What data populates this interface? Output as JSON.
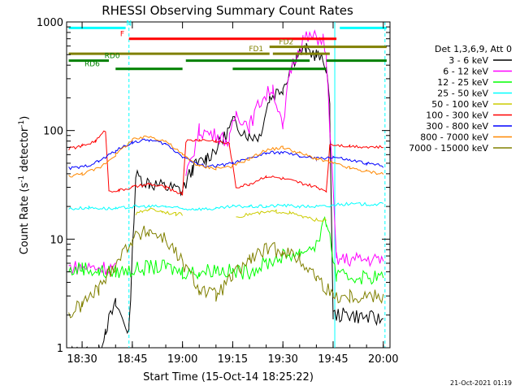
{
  "chart_data": {
    "type": "line",
    "title": "RHESSI Observing Summary Count Rates",
    "xlabel": "Start Time (15-Oct-14 18:25:22)",
    "ylabel_prefix": "Count Rate (s",
    "ylabel_mid": " detector",
    "ylabel_sup": "-1",
    "ylabel_suffix": ")",
    "yscale": "log",
    "ylim": [
      1,
      1000
    ],
    "xlim": [
      "18:25:22",
      "20:02:00"
    ],
    "x_ticks": [
      {
        "label": "18:30",
        "t": 1110
      },
      {
        "label": "18:45",
        "t": 1125
      },
      {
        "label": "19:00",
        "t": 1140
      },
      {
        "label": "19:15",
        "t": 1155
      },
      {
        "label": "19:30",
        "t": 1170
      },
      {
        "label": "19:45",
        "t": 1185
      },
      {
        "label": "20:00",
        "t": 1200
      }
    ],
    "y_ticks": [
      {
        "label": "1",
        "v": 1
      },
      {
        "label": "10",
        "v": 10
      },
      {
        "label": "100",
        "v": 100
      },
      {
        "label": "1000",
        "v": 1000
      }
    ],
    "legend_header": "Det 1,3,6,9, Att 0",
    "legend_position": "right",
    "series": [
      {
        "name": "3 - 6 keV",
        "color": "#000000",
        "points": [
          [
            1106,
            0.9
          ],
          [
            1115,
            0.9
          ],
          [
            1117,
            1.5
          ],
          [
            1120,
            2.5
          ],
          [
            1124,
            1.4
          ],
          [
            1126,
            38
          ],
          [
            1130,
            33
          ],
          [
            1135,
            30
          ],
          [
            1140,
            28
          ],
          [
            1143,
            45
          ],
          [
            1147,
            55
          ],
          [
            1152,
            80
          ],
          [
            1155,
            120
          ],
          [
            1160,
            90
          ],
          [
            1163,
            90
          ],
          [
            1166,
            200
          ],
          [
            1170,
            250
          ],
          [
            1174,
            500
          ],
          [
            1177,
            550
          ],
          [
            1180,
            500
          ],
          [
            1183,
            390
          ],
          [
            1184,
            150
          ],
          [
            1185,
            2
          ],
          [
            1190,
            2
          ],
          [
            1200,
            1.8
          ]
        ]
      },
      {
        "name": "6 - 12 keV",
        "color": "#ff00ff",
        "points": [
          [
            1106,
            5.5
          ],
          [
            1120,
            5.5
          ],
          [
            1126,
            null
          ],
          [
            1140,
            null
          ],
          [
            1141,
            36
          ],
          [
            1145,
            100
          ],
          [
            1150,
            90
          ],
          [
            1154,
            80
          ],
          [
            1156,
            145
          ],
          [
            1160,
            110
          ],
          [
            1163,
            180
          ],
          [
            1167,
            250
          ],
          [
            1170,
            100
          ],
          [
            1172,
            350
          ],
          [
            1176,
            700
          ],
          [
            1179,
            720
          ],
          [
            1182,
            700
          ],
          [
            1183,
            450
          ],
          [
            1186,
            6.5
          ],
          [
            1200,
            6.5
          ]
        ]
      },
      {
        "name": "12 - 25 keV",
        "color": "#00ff00",
        "points": [
          [
            1106,
            5
          ],
          [
            1110,
            5.5
          ],
          [
            1115,
            5
          ],
          [
            1120,
            5
          ],
          [
            1125,
            5.2
          ],
          [
            1130,
            5.5
          ],
          [
            1135,
            5.5
          ],
          [
            1140,
            5
          ],
          [
            1145,
            5
          ],
          [
            1150,
            5.3
          ],
          [
            1155,
            5
          ],
          [
            1160,
            5
          ],
          [
            1165,
            6
          ],
          [
            1170,
            7
          ],
          [
            1175,
            7.5
          ],
          [
            1180,
            9
          ],
          [
            1183,
            15
          ],
          [
            1186,
            4.5
          ],
          [
            1200,
            4.5
          ]
        ]
      },
      {
        "name": "25 - 50 keV",
        "color": "#00ffff",
        "points": [
          [
            1106,
            19
          ],
          [
            1112,
            19.5
          ],
          [
            1120,
            19
          ],
          [
            1126,
            20
          ],
          [
            1130,
            20
          ],
          [
            1135,
            20
          ],
          [
            1140,
            19
          ],
          [
            1144,
            19
          ],
          [
            1150,
            19
          ],
          [
            1155,
            20
          ],
          [
            1160,
            20
          ],
          [
            1165,
            20
          ],
          [
            1170,
            20.5
          ],
          [
            1175,
            20
          ],
          [
            1180,
            20
          ],
          [
            1184,
            20
          ],
          [
            1186,
            21
          ],
          [
            1200,
            21
          ]
        ]
      },
      {
        "name": "50 - 100 keV",
        "color": "#cccc00",
        "points": [
          [
            1126,
            17
          ],
          [
            1128,
            18
          ],
          [
            1130,
            19
          ],
          [
            1134,
            18
          ],
          [
            1138,
            17
          ],
          [
            1140,
            17
          ],
          [
            1141,
            null
          ],
          [
            1155,
            null
          ],
          [
            1156,
            16
          ],
          [
            1160,
            17
          ],
          [
            1164,
            17.5
          ],
          [
            1168,
            18
          ],
          [
            1172,
            17.5
          ],
          [
            1176,
            16
          ],
          [
            1180,
            15
          ],
          [
            1183,
            15
          ]
        ]
      },
      {
        "name": "100 - 300 keV",
        "color": "#ff0000",
        "points": [
          [
            1106,
            68
          ],
          [
            1110,
            72
          ],
          [
            1114,
            80
          ],
          [
            1117,
            100
          ],
          [
            1118,
            28
          ],
          [
            1121,
            28
          ],
          [
            1125,
            30
          ],
          [
            1130,
            32
          ],
          [
            1135,
            30
          ],
          [
            1140,
            26
          ],
          [
            1141,
            80
          ],
          [
            1145,
            82
          ],
          [
            1150,
            80
          ],
          [
            1154,
            75
          ],
          [
            1156,
            30
          ],
          [
            1160,
            32
          ],
          [
            1165,
            38
          ],
          [
            1170,
            36
          ],
          [
            1175,
            33
          ],
          [
            1180,
            30
          ],
          [
            1183,
            28
          ],
          [
            1184,
            75
          ],
          [
            1190,
            72
          ],
          [
            1200,
            70
          ]
        ]
      },
      {
        "name": "300 - 800 keV",
        "color": "#0000ff",
        "points": [
          [
            1106,
            45
          ],
          [
            1110,
            46
          ],
          [
            1115,
            52
          ],
          [
            1120,
            65
          ],
          [
            1125,
            78
          ],
          [
            1130,
            82
          ],
          [
            1135,
            75
          ],
          [
            1140,
            58
          ],
          [
            1145,
            48
          ],
          [
            1150,
            47
          ],
          [
            1155,
            50
          ],
          [
            1160,
            55
          ],
          [
            1165,
            62
          ],
          [
            1170,
            63
          ],
          [
            1175,
            58
          ],
          [
            1180,
            55
          ],
          [
            1185,
            57
          ],
          [
            1190,
            53
          ],
          [
            1195,
            50
          ],
          [
            1200,
            47
          ]
        ]
      },
      {
        "name": "800 - 7000 keV",
        "color": "#ff8800",
        "points": [
          [
            1106,
            38
          ],
          [
            1110,
            40
          ],
          [
            1115,
            45
          ],
          [
            1120,
            60
          ],
          [
            1125,
            82
          ],
          [
            1130,
            88
          ],
          [
            1135,
            80
          ],
          [
            1140,
            60
          ],
          [
            1145,
            47
          ],
          [
            1150,
            45
          ],
          [
            1155,
            47
          ],
          [
            1160,
            55
          ],
          [
            1165,
            66
          ],
          [
            1170,
            70
          ],
          [
            1175,
            62
          ],
          [
            1180,
            55
          ],
          [
            1185,
            50
          ],
          [
            1190,
            45
          ],
          [
            1195,
            42
          ],
          [
            1200,
            40
          ]
        ]
      },
      {
        "name": "7000 - 15000 keV",
        "color": "#808000",
        "points": [
          [
            1106,
            2
          ],
          [
            1110,
            2.5
          ],
          [
            1115,
            3.5
          ],
          [
            1120,
            6
          ],
          [
            1125,
            10
          ],
          [
            1130,
            12
          ],
          [
            1135,
            10
          ],
          [
            1140,
            6
          ],
          [
            1145,
            3.5
          ],
          [
            1150,
            3
          ],
          [
            1155,
            4.5
          ],
          [
            1160,
            6.5
          ],
          [
            1165,
            8
          ],
          [
            1170,
            8
          ],
          [
            1175,
            6.5
          ],
          [
            1180,
            4.5
          ],
          [
            1185,
            3
          ],
          [
            1190,
            3
          ],
          [
            1195,
            3
          ],
          [
            1200,
            3
          ]
        ]
      }
    ],
    "flag_bars": [
      {
        "label": "N",
        "color": "#00ffff",
        "segments": [
          [
            1106,
            1123
          ],
          [
            1187,
            1201
          ]
        ],
        "y": 880,
        "label_t": 1124
      },
      {
        "label": "F",
        "color": "#ff0000",
        "segments": [
          [
            1124,
            1186
          ]
        ],
        "y": 700,
        "label_t": 1122
      },
      {
        "label": "FD1",
        "color": "#808000",
        "segments": [
          [
            1106,
            1166
          ],
          [
            1167,
            1184
          ]
        ],
        "y": 510,
        "label_t": 1162
      },
      {
        "label": "FD2",
        "color": "#808000",
        "segments": [
          [
            1166,
            1201
          ]
        ],
        "y": 590,
        "label_t": 1171
      },
      {
        "label": "RD0",
        "color": "#008000",
        "segments": [
          [
            1106,
            1118
          ],
          [
            1141,
            1178
          ],
          [
            1183,
            1201
          ]
        ],
        "y": 440,
        "label_t": 1119
      },
      {
        "label": "RD6",
        "color": "#008000",
        "segments": [
          [
            1120,
            1140
          ],
          [
            1155,
            1183
          ]
        ],
        "y": 370,
        "label_t": 1113
      }
    ],
    "vertical_markers": [
      1124,
      1185.5,
      1200.5
    ],
    "footer_timestamp": "21-Oct-2021 01:19"
  }
}
